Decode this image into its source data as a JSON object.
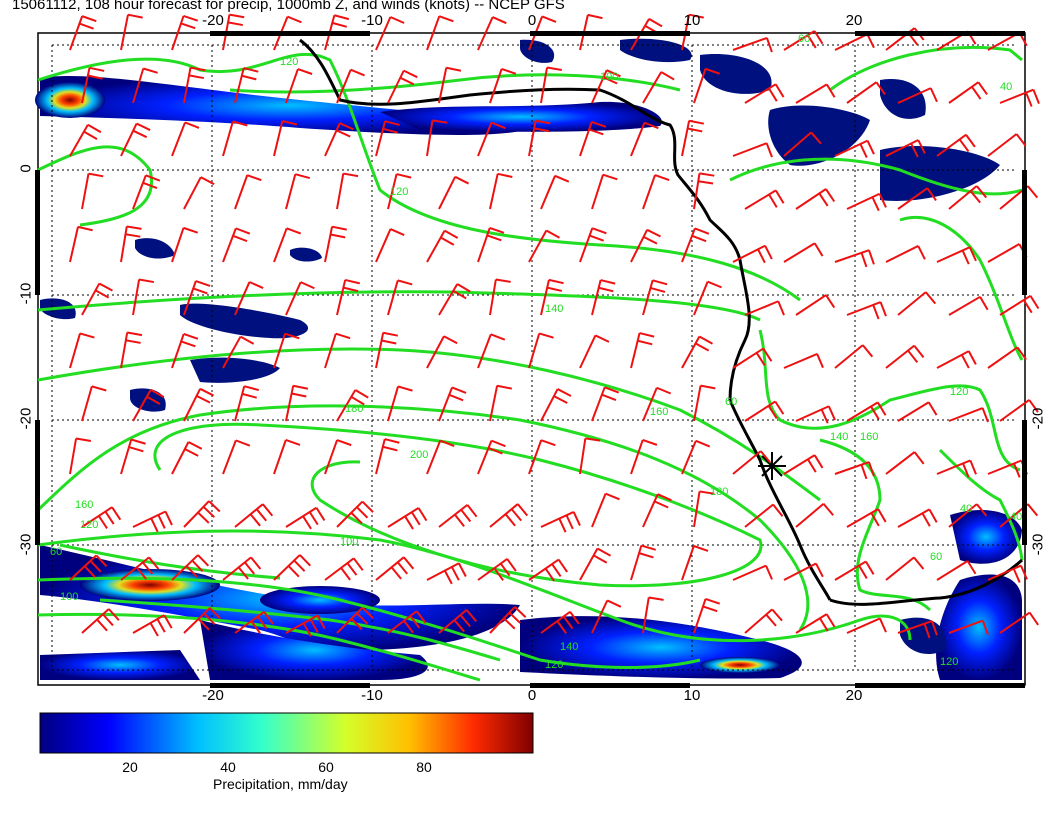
{
  "title": "15061112, 108 hour forecast for precip, 1000mb Z, and winds (knots) -- NCEP GFS",
  "map": {
    "lon_ticks": [
      "-20",
      "-10",
      "0",
      "10",
      "20"
    ],
    "lat_ticks": [
      "0",
      "-10",
      "-20",
      "-30"
    ],
    "contour_color": "#22dd22",
    "barb_color": "#ee1111",
    "coast_color": "#000000",
    "contour_labels": [
      "120",
      "100",
      "60",
      "120",
      "140",
      "180",
      "160",
      "200",
      "160",
      "120",
      "100",
      "60",
      "180",
      "140",
      "120",
      "160",
      "140",
      "60",
      "120",
      "40",
      "40",
      "100",
      "60",
      "120",
      "40"
    ],
    "station_marker": "asterisk"
  },
  "colorbar": {
    "ticks": [
      "20",
      "40",
      "60",
      "80"
    ],
    "label": "Precipitation, mm/day",
    "range": [
      0,
      100
    ],
    "stops": [
      "#00007f",
      "#0000ff",
      "#00bfff",
      "#33ffcc",
      "#d4ff2a",
      "#ffbf00",
      "#ff2a00",
      "#7f0000"
    ]
  }
}
